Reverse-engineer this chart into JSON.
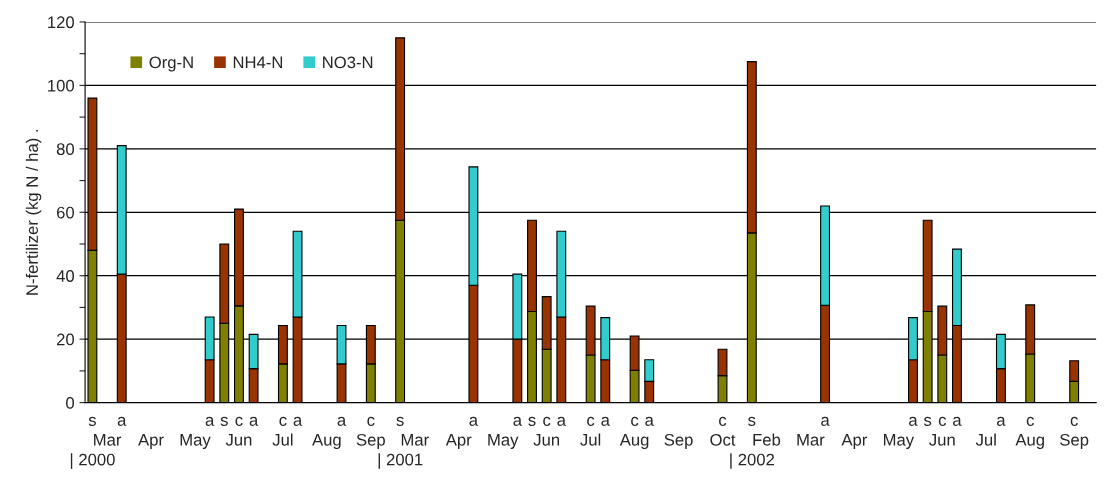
{
  "chart_data": {
    "type": "bar",
    "stacked": true,
    "ylabel": "N-fertilizer (kg N / ha) .",
    "categories": [
      "s\n\n| 2000",
      "\nMar",
      "a",
      null,
      "\nApr",
      null,
      null,
      "\nMay",
      "a",
      "s",
      "c\nJun",
      "a",
      null,
      "c\nJul",
      "a",
      null,
      "\nAug",
      "a",
      null,
      "c\nSep",
      null,
      "s\n\n| 2001",
      "\nMar",
      null,
      null,
      "\nApr",
      "a",
      null,
      "\nMay",
      "a",
      "s",
      "c\nJun",
      "a",
      null,
      "c\nJul",
      "a",
      null,
      "c\nAug",
      "a",
      null,
      "\nSep",
      null,
      null,
      "c\nOct",
      null,
      "s\n\n| 2002",
      "\nFeb",
      null,
      null,
      "\nMar",
      "a",
      null,
      "\nApr",
      null,
      null,
      "\nMay",
      "a",
      "s",
      "c\nJun",
      "a",
      null,
      "\nJul",
      "a",
      null,
      "c\nAug",
      null,
      null,
      "c\nSep",
      null
    ],
    "ylim": [
      0,
      120
    ],
    "yticks": [
      0,
      {
        "value": 10,
        "label": null
      },
      20,
      {
        "value": 30,
        "label": null
      },
      40,
      {
        "value": 50,
        "label": null
      },
      60,
      {
        "value": 70,
        "label": null
      },
      80,
      {
        "value": 90,
        "label": null
      },
      100,
      {
        "value": 110,
        "label": null
      },
      120
    ],
    "grid": "y",
    "legend": "top left",
    "series": [
      {
        "name": "Org-N",
        "color": "#808000",
        "values": [
          48,
          null,
          null,
          null,
          null,
          null,
          null,
          null,
          null,
          25,
          30.5,
          null,
          null,
          12.2,
          null,
          null,
          null,
          null,
          null,
          12.2,
          null,
          57.5,
          null,
          null,
          null,
          null,
          null,
          null,
          null,
          null,
          28.7,
          16.8,
          null,
          null,
          15,
          null,
          null,
          10.2,
          null,
          null,
          null,
          null,
          null,
          8.5,
          null,
          53.5,
          null,
          null,
          null,
          null,
          null,
          null,
          null,
          null,
          null,
          null,
          null,
          28.7,
          15,
          null,
          null,
          null,
          null,
          null,
          15.3,
          null,
          null,
          6.7,
          null
        ]
      },
      {
        "name": "NH4-N",
        "color": "#993300",
        "values": [
          48,
          null,
          40.5,
          null,
          null,
          null,
          null,
          null,
          13.5,
          25,
          30.5,
          10.7,
          null,
          12.1,
          27,
          null,
          null,
          12.2,
          null,
          12.1,
          null,
          57.5,
          null,
          null,
          null,
          null,
          37,
          null,
          null,
          20,
          28.8,
          16.6,
          27,
          null,
          15.4,
          13.5,
          null,
          10.8,
          6.7,
          null,
          null,
          null,
          null,
          8.3,
          null,
          54,
          null,
          null,
          null,
          null,
          30.7,
          null,
          null,
          null,
          null,
          null,
          13.5,
          28.8,
          15.4,
          24.3,
          null,
          null,
          10.7,
          null,
          15.5,
          null,
          null,
          6.5,
          null
        ]
      },
      {
        "name": "NO3-N",
        "color": "#33cccc",
        "values": [
          null,
          null,
          40.5,
          null,
          null,
          null,
          null,
          null,
          13.5,
          null,
          null,
          10.8,
          null,
          null,
          27,
          null,
          null,
          12.1,
          null,
          null,
          null,
          null,
          null,
          null,
          null,
          null,
          37.3,
          null,
          null,
          20.5,
          null,
          null,
          27,
          null,
          null,
          13.3,
          null,
          null,
          6.8,
          null,
          null,
          null,
          null,
          null,
          null,
          null,
          null,
          null,
          null,
          null,
          31.3,
          null,
          null,
          null,
          null,
          null,
          13.3,
          null,
          null,
          24.1,
          null,
          null,
          10.8,
          null,
          null,
          null,
          null,
          null,
          null
        ]
      }
    ]
  }
}
